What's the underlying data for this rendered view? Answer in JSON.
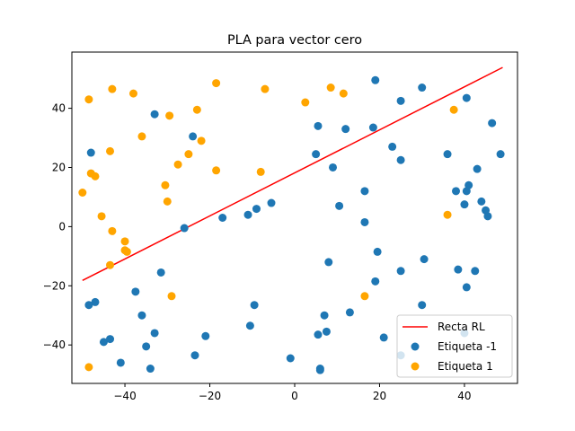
{
  "chart_data": {
    "type": "scatter",
    "title": "PLA para vector cero",
    "xlabel": "",
    "ylabel": "",
    "xlim": [
      -52.5,
      52.5
    ],
    "ylim": [
      -53,
      59
    ],
    "xticks": [
      -40,
      -20,
      0,
      20,
      40
    ],
    "yticks": [
      -40,
      -20,
      0,
      20,
      40
    ],
    "grid": false,
    "legend_position": "lower-right",
    "line": {
      "name": "Recta RL",
      "color": "#ff0000",
      "points": [
        [
          -50,
          -18.2
        ],
        [
          49,
          53.8
        ]
      ]
    },
    "series": [
      {
        "name": "Etiqueta -1",
        "color": "#1f77b4",
        "points": [
          [
            -48,
            25
          ],
          [
            -48.5,
            -26.5
          ],
          [
            -47,
            -25.5
          ],
          [
            -45,
            -39
          ],
          [
            -43.5,
            -38
          ],
          [
            -41,
            -46
          ],
          [
            -37.5,
            -22
          ],
          [
            -36,
            -30
          ],
          [
            -35,
            -40.5
          ],
          [
            -34,
            -48
          ],
          [
            -33,
            38
          ],
          [
            -33,
            -36
          ],
          [
            -31.5,
            -15.5
          ],
          [
            -26,
            -0.5
          ],
          [
            -24,
            30.5
          ],
          [
            -23.5,
            -43.5
          ],
          [
            -21,
            -37
          ],
          [
            -17,
            3
          ],
          [
            -11,
            4
          ],
          [
            -10.5,
            -33.5
          ],
          [
            -9.5,
            -26.5
          ],
          [
            -9,
            6
          ],
          [
            -5.5,
            8
          ],
          [
            -1,
            -44.5
          ],
          [
            5,
            24.5
          ],
          [
            5.5,
            34
          ],
          [
            5.5,
            -36.5
          ],
          [
            6,
            -48
          ],
          [
            6,
            -48.5
          ],
          [
            7,
            -30
          ],
          [
            7.5,
            -35.5
          ],
          [
            8,
            -12
          ],
          [
            9,
            20
          ],
          [
            10.5,
            7
          ],
          [
            12,
            33
          ],
          [
            13,
            -29
          ],
          [
            16.5,
            12
          ],
          [
            16.5,
            1.5
          ],
          [
            18.5,
            33.5
          ],
          [
            19,
            49.5
          ],
          [
            19,
            -18.5
          ],
          [
            19.5,
            -8.5
          ],
          [
            21,
            -37.5
          ],
          [
            23,
            27
          ],
          [
            25,
            42.5
          ],
          [
            25,
            22.5
          ],
          [
            25,
            -15
          ],
          [
            25,
            -43.5
          ],
          [
            30,
            47
          ],
          [
            30.5,
            -11
          ],
          [
            30,
            -26.5
          ],
          [
            36,
            24.5
          ],
          [
            38,
            12
          ],
          [
            38.5,
            -14.5
          ],
          [
            40,
            7.5
          ],
          [
            40,
            -36
          ],
          [
            40.5,
            43.5
          ],
          [
            40.5,
            12
          ],
          [
            41,
            14
          ],
          [
            40.5,
            -20.5
          ],
          [
            42.5,
            -15
          ],
          [
            43,
            19.5
          ],
          [
            44,
            8.5
          ],
          [
            45,
            5.5
          ],
          [
            45.5,
            3.5
          ],
          [
            46.5,
            35
          ],
          [
            48.5,
            24.5
          ]
        ]
      },
      {
        "name": "Etiqueta 1",
        "color": "#ffa500",
        "points": [
          [
            -50,
            11.5
          ],
          [
            -48.5,
            43
          ],
          [
            -48,
            18
          ],
          [
            -47,
            17
          ],
          [
            -45.5,
            3.5
          ],
          [
            -43.5,
            25.5
          ],
          [
            -43,
            46.5
          ],
          [
            -43,
            -1.5
          ],
          [
            -43.5,
            -13
          ],
          [
            -40,
            -8
          ],
          [
            -40,
            -5
          ],
          [
            -39.5,
            -8.5
          ],
          [
            -38,
            45
          ],
          [
            -36,
            30.5
          ],
          [
            -30.5,
            14
          ],
          [
            -30,
            8.5
          ],
          [
            -29.5,
            37.5
          ],
          [
            -29,
            -23.5
          ],
          [
            -27.5,
            21
          ],
          [
            -25,
            24.5
          ],
          [
            -23,
            39.5
          ],
          [
            -22,
            29
          ],
          [
            -18.5,
            48.5
          ],
          [
            -18.5,
            19
          ],
          [
            -8,
            18.5
          ],
          [
            -7,
            46.5
          ],
          [
            2.5,
            42
          ],
          [
            8.5,
            47
          ],
          [
            11.5,
            45
          ],
          [
            16.5,
            -23.5
          ],
          [
            36,
            4
          ],
          [
            37.5,
            39.5
          ],
          [
            -48.5,
            -47.5
          ]
        ]
      }
    ]
  }
}
